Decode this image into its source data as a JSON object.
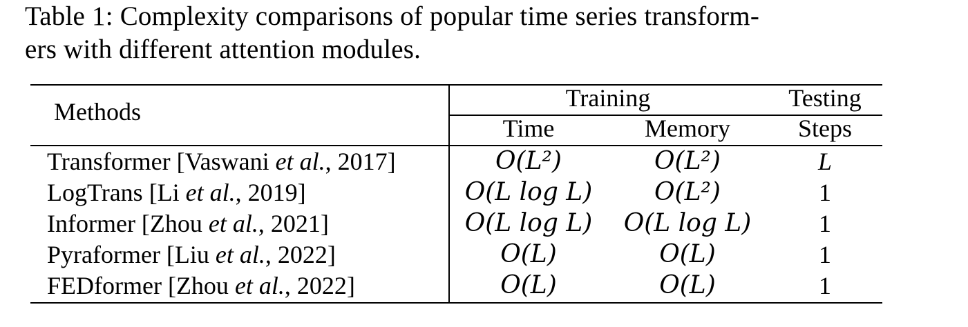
{
  "caption": {
    "line1": "Table 1: Complexity comparisons of popular time series transform-",
    "line2": "ers with different attention modules."
  },
  "table": {
    "headers": {
      "methods": "Methods",
      "training": "Training",
      "testing": "Testing",
      "time": "Time",
      "memory": "Memory",
      "steps": "Steps"
    },
    "rows": [
      {
        "name": "Transformer [Vaswani ",
        "etal": "et al.",
        "year": ", 2017]",
        "time": "O(L²)",
        "memory": "O(L²)",
        "steps": "L"
      },
      {
        "name": "LogTrans [Li ",
        "etal": "et al.",
        "year": ", 2019]",
        "time": "O(L log L)",
        "memory": "O(L²)",
        "steps": "1"
      },
      {
        "name": "Informer [Zhou ",
        "etal": "et al.",
        "year": ", 2021]",
        "time": "O(L log L)",
        "memory": "O(L log L)",
        "steps": "1"
      },
      {
        "name": "Pyraformer [Liu ",
        "etal": "et al.",
        "year": ", 2022]",
        "time": "O(L)",
        "memory": "O(L)",
        "steps": "1"
      },
      {
        "name": "FEDformer [Zhou ",
        "etal": "et al.",
        "year": ", 2022]",
        "time": "O(L)",
        "memory": "O(L)",
        "steps": "1"
      }
    ]
  }
}
